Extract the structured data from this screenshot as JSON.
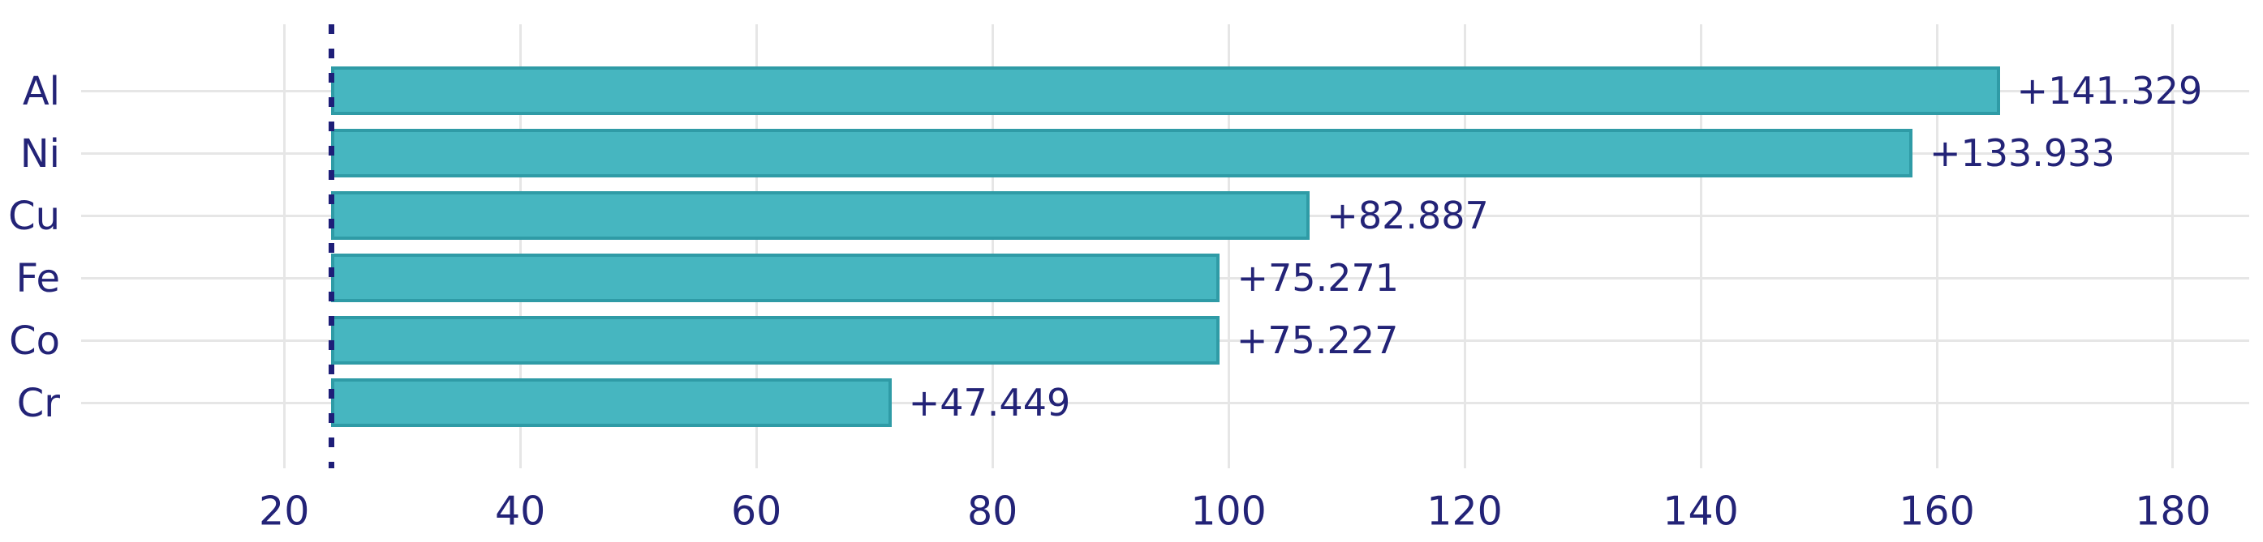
{
  "chart_data": {
    "type": "bar",
    "orientation": "horizontal",
    "title": "",
    "xlabel": "",
    "ylabel": "",
    "categories": [
      "Al",
      "Ni",
      "Cu",
      "Fe",
      "Co",
      "Cr"
    ],
    "values": [
      141.329,
      133.933,
      82.887,
      75.271,
      75.227,
      47.449
    ],
    "bar_labels": [
      "+141.329",
      "+133.933",
      "+82.887",
      "+75.271",
      "+75.227",
      "+47.449"
    ],
    "bar_start_baseline": 24,
    "baseline_line_style": "dashed",
    "x_tick_labels": [
      "20",
      "40",
      "60",
      "80",
      "100",
      "120",
      "140",
      "160",
      "180"
    ],
    "x_tick_values": [
      20,
      40,
      60,
      80,
      100,
      120,
      140,
      160,
      180
    ],
    "xlim": [
      2.8,
      185.5
    ],
    "grid": true,
    "legend_position": "none",
    "colors": {
      "bar_fill": "#46b6c0",
      "bar_border": "#2f9ba6",
      "text": "#232377",
      "baseline_line": "#1e1e78",
      "gridline": "#e6e6e6",
      "background": "#ffffff"
    }
  }
}
